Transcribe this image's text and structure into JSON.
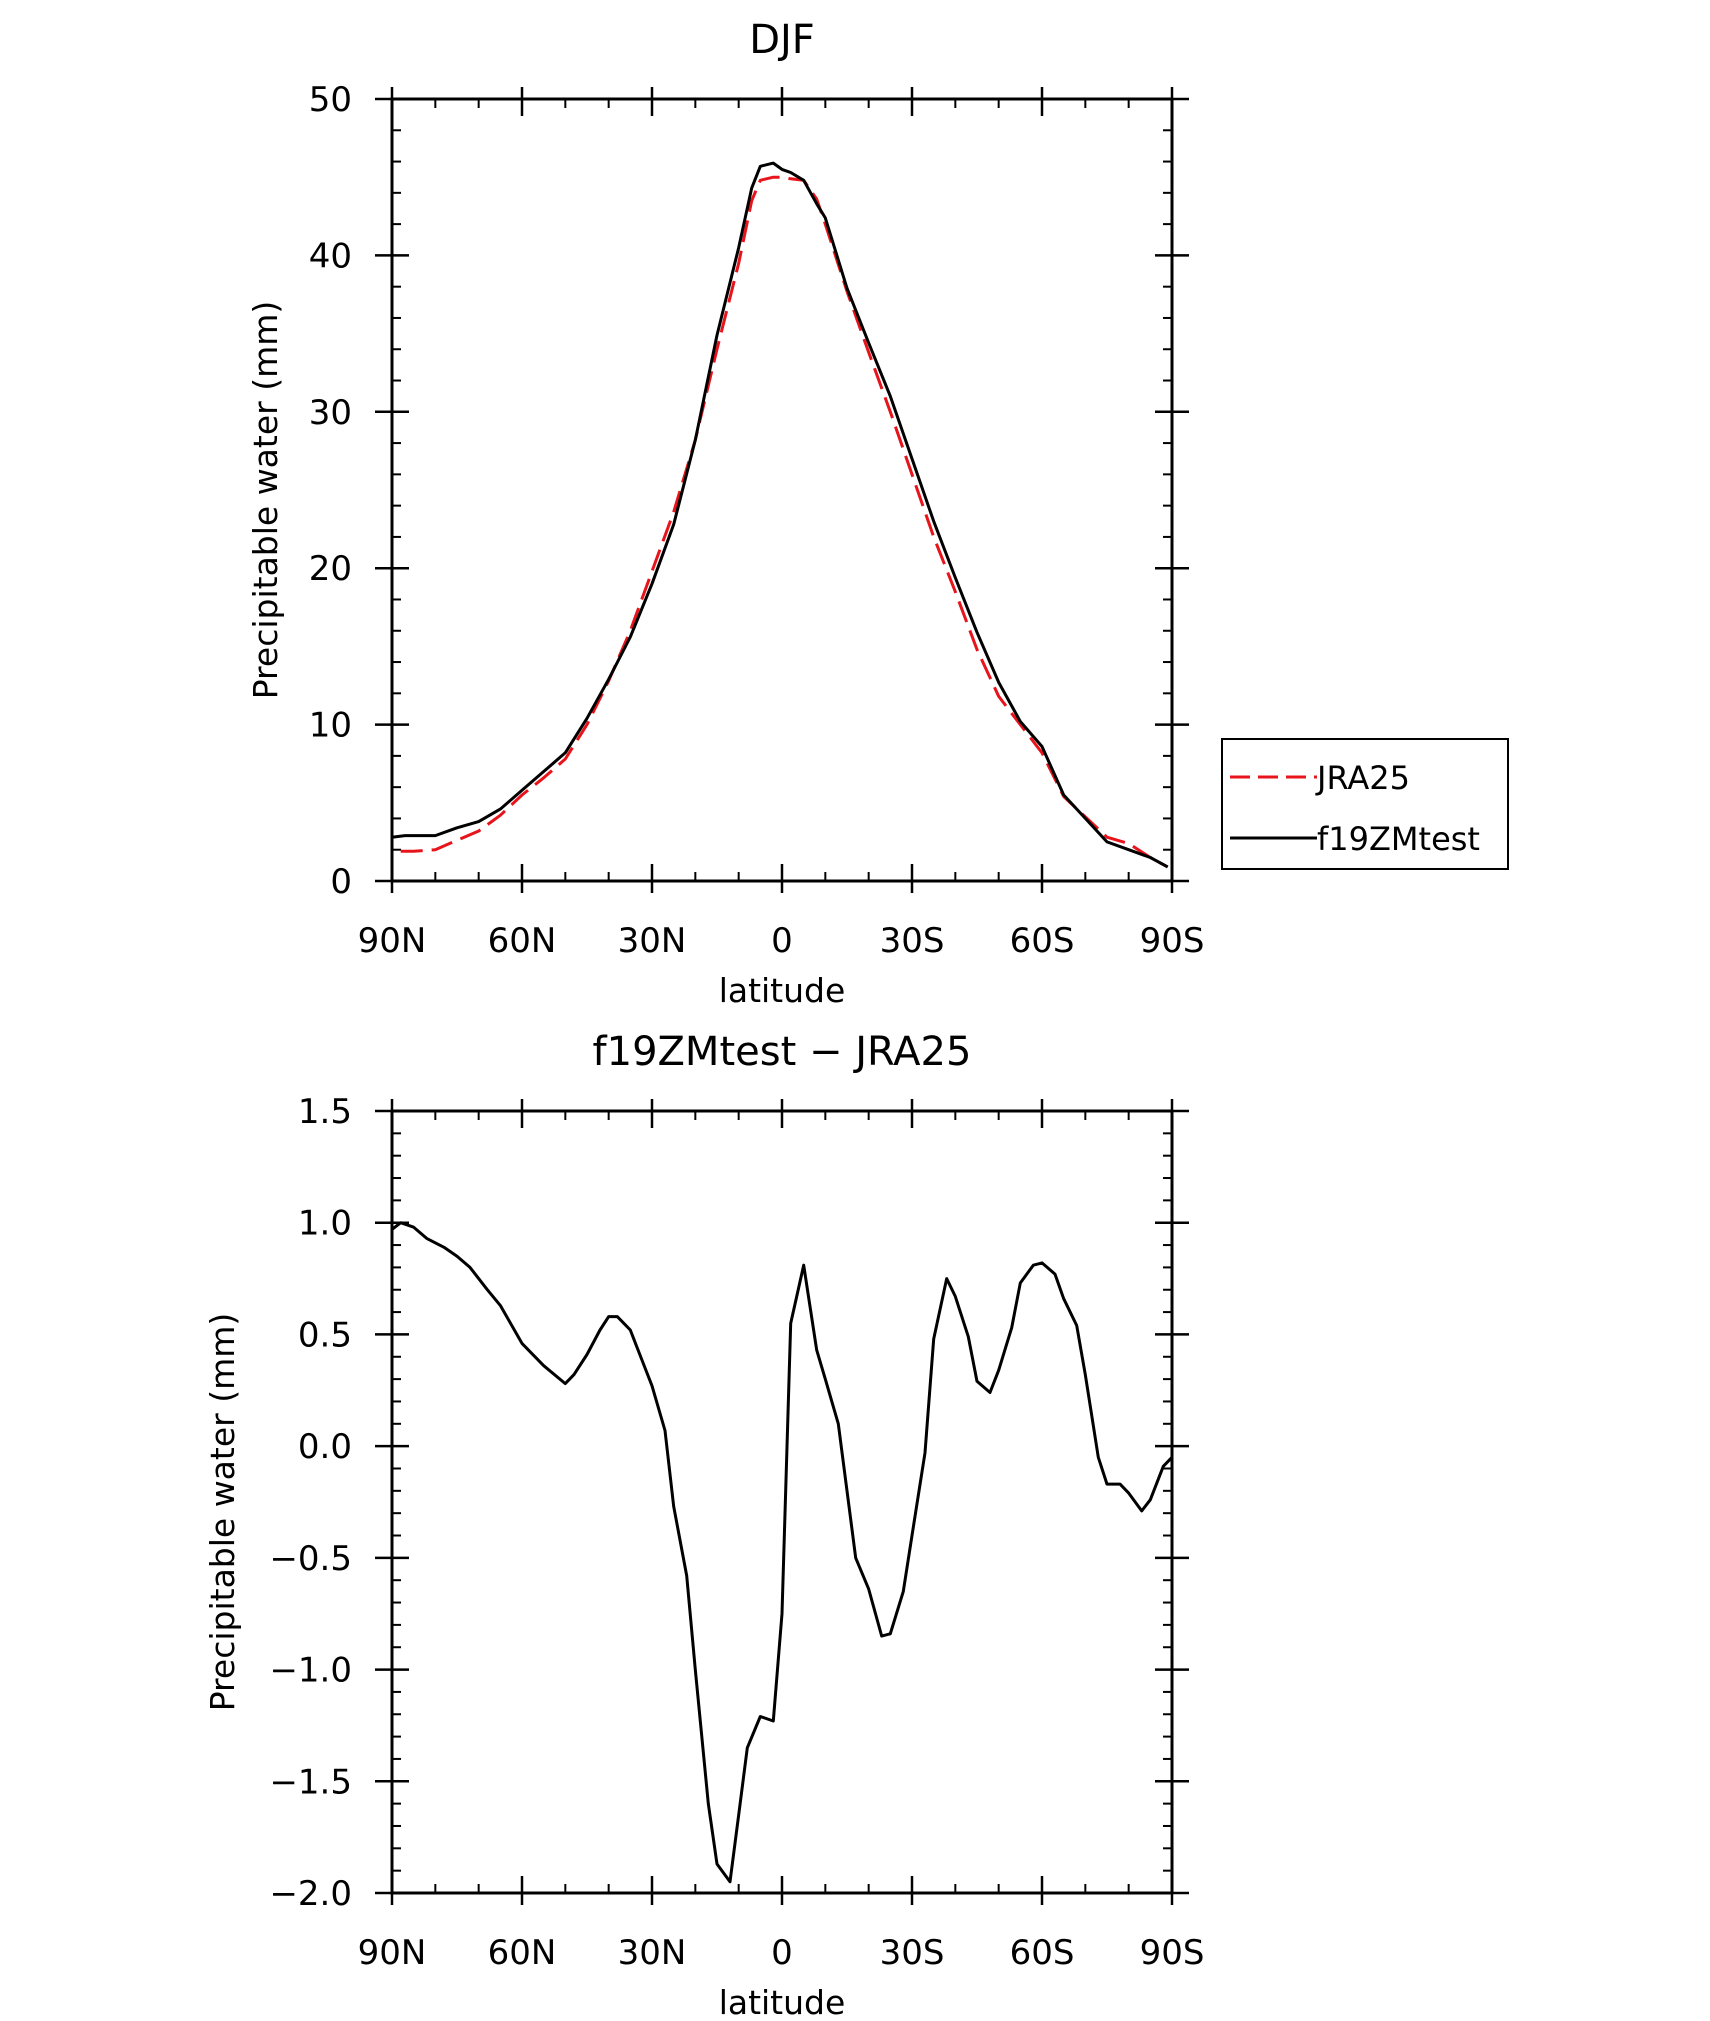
{
  "chart_data": [
    {
      "type": "line",
      "title": "DJF",
      "xlabel": "latitude",
      "ylabel": "Precipitable water (mm)",
      "xlim": [
        90,
        -90
      ],
      "ylim": [
        0,
        50
      ],
      "x_ticks": [
        90,
        60,
        30,
        0,
        -30,
        -60,
        -90
      ],
      "x_tick_labels": [
        "90N",
        "60N",
        "30N",
        "0",
        "30S",
        "60S",
        "90S"
      ],
      "y_ticks": [
        0,
        10,
        20,
        30,
        40,
        50
      ],
      "y_tick_labels": [
        "0",
        "10",
        "20",
        "30",
        "40",
        "50"
      ],
      "grid": false,
      "legend_position": "right",
      "series": [
        {
          "name": "JRA25",
          "color": "#e8141c",
          "dash": "dashed",
          "x": [
            88,
            85,
            80,
            75,
            70,
            65,
            60,
            55,
            50,
            45,
            40,
            35,
            30,
            25,
            20,
            15,
            10,
            7,
            5,
            2,
            0,
            -2,
            -5,
            -8,
            -10,
            -15,
            -20,
            -25,
            -30,
            -35,
            -40,
            -45,
            -50,
            -55,
            -60,
            -65,
            -70,
            -75,
            -80,
            -85,
            -89
          ],
          "y": [
            1.9,
            1.9,
            2.0,
            2.6,
            3.2,
            4.2,
            5.5,
            6.6,
            7.8,
            10.0,
            12.8,
            16.0,
            19.8,
            23.6,
            28.2,
            34.0,
            39.5,
            43.5,
            44.8,
            45.0,
            45.0,
            44.9,
            44.8,
            43.6,
            42.0,
            37.7,
            33.8,
            30.0,
            26.0,
            22.0,
            18.5,
            14.8,
            11.8,
            10.0,
            8.2,
            5.4,
            4.1,
            2.8,
            2.4,
            1.5,
            0.9
          ]
        },
        {
          "name": "f19ZMtest",
          "color": "#000000",
          "dash": "solid",
          "x": [
            90,
            87,
            85,
            80,
            75,
            70,
            65,
            60,
            55,
            50,
            45,
            40,
            35,
            30,
            25,
            20,
            15,
            10,
            7,
            5,
            2,
            0,
            -2,
            -5,
            -8,
            -10,
            -15,
            -20,
            -25,
            -30,
            -35,
            -40,
            -45,
            -50,
            -55,
            -60,
            -65,
            -70,
            -75,
            -80,
            -85,
            -89
          ],
          "y": [
            2.8,
            2.9,
            2.9,
            2.9,
            3.4,
            3.8,
            4.6,
            5.8,
            7.0,
            8.2,
            10.4,
            12.9,
            15.6,
            19.0,
            22.8,
            28.2,
            34.9,
            40.5,
            44.3,
            45.7,
            45.9,
            45.5,
            45.3,
            44.8,
            43.3,
            42.4,
            37.9,
            34.4,
            31.0,
            27.0,
            23.0,
            19.4,
            15.9,
            12.7,
            10.2,
            8.6,
            5.5,
            4.0,
            2.5,
            2.0,
            1.5,
            0.9
          ]
        }
      ]
    },
    {
      "type": "line",
      "title": "f19ZMtest − JRA25",
      "xlabel": "latitude",
      "ylabel": "Precipitable water (mm)",
      "xlim": [
        90,
        -90
      ],
      "ylim": [
        -2.0,
        1.5
      ],
      "x_ticks": [
        90,
        60,
        30,
        0,
        -30,
        -60,
        -90
      ],
      "x_tick_labels": [
        "90N",
        "60N",
        "30N",
        "0",
        "30S",
        "60S",
        "90S"
      ],
      "y_ticks": [
        1.5,
        1.0,
        0.5,
        0.0,
        -0.5,
        -1.0,
        -1.5,
        -2.0
      ],
      "y_tick_labels": [
        "1.5",
        "1.0",
        "0.5",
        "0.0",
        "−0.5",
        "−1.0",
        "−1.5",
        "−2.0"
      ],
      "grid": false,
      "series": [
        {
          "color": "#000000",
          "dash": "solid",
          "x": [
            90,
            88,
            85,
            82,
            78,
            75,
            72,
            68,
            65,
            60,
            55,
            50,
            48,
            45,
            42,
            40,
            38,
            35,
            32,
            30,
            27,
            25,
            22,
            20,
            17,
            15,
            12,
            10,
            8,
            5,
            2,
            0,
            -2,
            -5,
            -8,
            -10,
            -13,
            -15,
            -17,
            -20,
            -23,
            -25,
            -28,
            -30,
            -33,
            -35,
            -38,
            -40,
            -43,
            -45,
            -48,
            -50,
            -53,
            -55,
            -58,
            -60,
            -63,
            -65,
            -68,
            -70,
            -73,
            -75,
            -78,
            -80,
            -83,
            -85,
            -88,
            -90
          ],
          "y": [
            0.97,
            1.0,
            0.98,
            0.93,
            0.89,
            0.85,
            0.8,
            0.7,
            0.63,
            0.46,
            0.36,
            0.28,
            0.32,
            0.41,
            0.52,
            0.58,
            0.58,
            0.52,
            0.37,
            0.27,
            0.07,
            -0.27,
            -0.58,
            -1.0,
            -1.6,
            -1.87,
            -1.95,
            -1.65,
            -1.35,
            -1.21,
            -1.23,
            -0.75,
            0.55,
            0.81,
            0.43,
            0.3,
            0.1,
            -0.2,
            -0.5,
            -0.64,
            -0.85,
            -0.84,
            -0.65,
            -0.4,
            -0.03,
            0.48,
            0.75,
            0.67,
            0.49,
            0.29,
            0.24,
            0.34,
            0.53,
            0.73,
            0.81,
            0.82,
            0.77,
            0.66,
            0.54,
            0.32,
            -0.05,
            -0.17,
            -0.17,
            -0.21,
            -0.29,
            -0.24,
            -0.09,
            -0.05
          ]
        }
      ]
    }
  ]
}
